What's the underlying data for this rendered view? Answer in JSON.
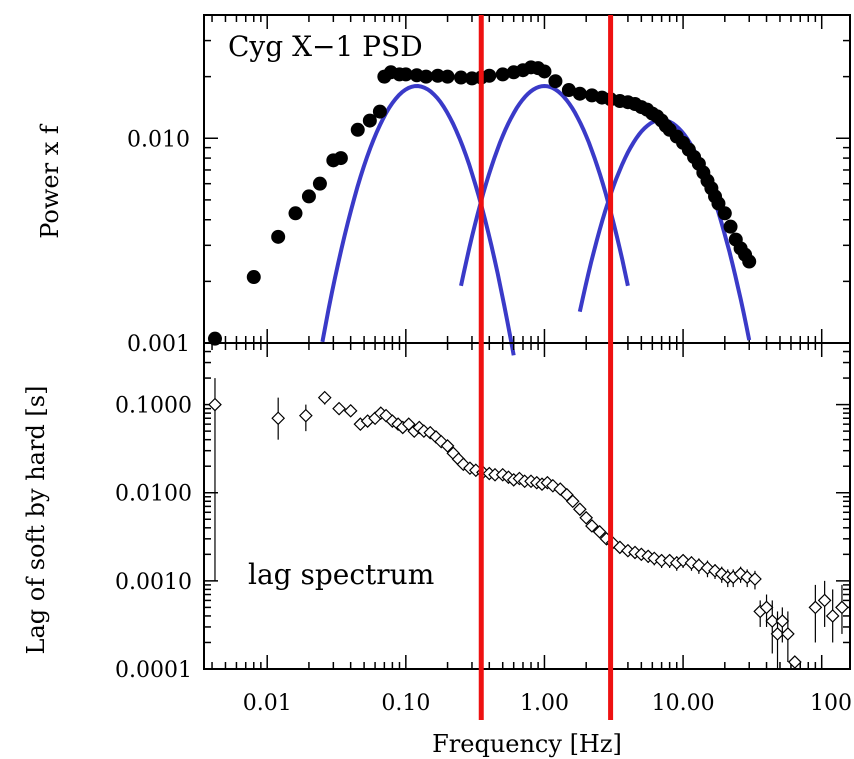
{
  "chart_data": [
    {
      "type": "scatter",
      "panel": "top",
      "title": "Cyg X−1 PSD",
      "ylabel": "Power x f",
      "xscale": "log",
      "yscale": "log",
      "xlim": [
        0.0035,
        160
      ],
      "ylim": [
        0.001,
        0.04
      ],
      "yticks": [
        {
          "value": 0.001,
          "label": "0.001"
        },
        {
          "value": 0.01,
          "label": "0.010"
        }
      ],
      "series": [
        {
          "marker": "filled-circle",
          "color": "#000000",
          "x": [
            0.0042,
            0.008,
            0.012,
            0.016,
            0.02,
            0.024,
            0.03,
            0.034,
            0.045,
            0.055,
            0.065,
            0.07,
            0.078,
            0.09,
            0.1,
            0.12,
            0.14,
            0.17,
            0.2,
            0.25,
            0.3,
            0.35,
            0.4,
            0.5,
            0.6,
            0.7,
            0.8,
            0.9,
            1.0,
            1.2,
            1.5,
            1.8,
            2.2,
            2.6,
            3.0,
            3.5,
            4.0,
            4.5,
            5.0,
            5.5,
            6.0,
            6.5,
            7.0,
            7.5,
            8.0,
            9.0,
            10.0,
            11.0,
            12.0,
            13.0,
            14.0,
            15.0,
            16.0,
            17.0,
            18.0,
            20.0,
            22.0,
            24.0,
            26.0,
            28.0,
            30.0
          ],
          "y": [
            0.00105,
            0.0021,
            0.0033,
            0.0043,
            0.0052,
            0.006,
            0.0078,
            0.008,
            0.011,
            0.0122,
            0.0135,
            0.02,
            0.021,
            0.0205,
            0.0205,
            0.0203,
            0.02,
            0.0202,
            0.02,
            0.0198,
            0.0196,
            0.0198,
            0.0202,
            0.0205,
            0.021,
            0.0215,
            0.0222,
            0.022,
            0.0212,
            0.019,
            0.0172,
            0.0165,
            0.0162,
            0.0158,
            0.0155,
            0.0152,
            0.015,
            0.0147,
            0.0142,
            0.0138,
            0.0132,
            0.0128,
            0.0122,
            0.0115,
            0.011,
            0.0102,
            0.0095,
            0.0088,
            0.0081,
            0.0075,
            0.0068,
            0.0062,
            0.0057,
            0.0052,
            0.0048,
            0.0043,
            0.0037,
            0.0032,
            0.0029,
            0.0027,
            0.0025
          ]
        }
      ],
      "components": {
        "color": "#3a3ac8",
        "curves": [
          {
            "peak_x": 0.12,
            "peak_y": 0.018,
            "x_range": [
              0.025,
              0.6
            ]
          },
          {
            "peak_x": 1.0,
            "peak_y": 0.018,
            "x_range": [
              0.25,
              4.0
            ]
          },
          {
            "peak_x": 7.0,
            "peak_y": 0.0123,
            "x_range": [
              1.8,
              30.0
            ]
          }
        ]
      }
    },
    {
      "type": "scatter",
      "panel": "bottom",
      "title": "lag spectrum",
      "xlabel": "Frequency [Hz]",
      "ylabel": "Lag of soft by hard [s]",
      "xscale": "log",
      "yscale": "log",
      "xlim": [
        0.0035,
        160
      ],
      "ylim": [
        0.0001,
        0.5
      ],
      "xticks": [
        {
          "value": 0.01,
          "label": "0.01"
        },
        {
          "value": 0.1,
          "label": "0.10"
        },
        {
          "value": 1,
          "label": "1.00"
        },
        {
          "value": 10,
          "label": "10.00"
        },
        {
          "value": 100,
          "label": "100"
        }
      ],
      "yticks": [
        {
          "value": 0.0001,
          "label": "0.0001"
        },
        {
          "value": 0.001,
          "label": "0.0010"
        },
        {
          "value": 0.01,
          "label": "0.0100"
        },
        {
          "value": 0.1,
          "label": "0.1000"
        }
      ],
      "series": [
        {
          "marker": "open-diamond",
          "color": "#000000",
          "x": [
            0.0042,
            0.012,
            0.019,
            0.026,
            0.033,
            0.04,
            0.047,
            0.053,
            0.06,
            0.066,
            0.072,
            0.08,
            0.088,
            0.095,
            0.105,
            0.115,
            0.125,
            0.135,
            0.15,
            0.165,
            0.18,
            0.2,
            0.22,
            0.24,
            0.26,
            0.29,
            0.32,
            0.36,
            0.4,
            0.44,
            0.5,
            0.55,
            0.6,
            0.66,
            0.72,
            0.8,
            0.88,
            0.96,
            1.05,
            1.15,
            1.3,
            1.45,
            1.6,
            1.8,
            2.0,
            2.2,
            2.5,
            2.8,
            3.1,
            3.5,
            4.0,
            4.5,
            5.0,
            5.6,
            6.2,
            7.0,
            8.0,
            9.0,
            10.0,
            11.5,
            13.0,
            15.0,
            17.0,
            19.0,
            21.0,
            23.0,
            26.0,
            29.0,
            33.0,
            36.0,
            40.0,
            44.0,
            48.0,
            52.0,
            57.0,
            64.0,
            90.0,
            105.0,
            120.0,
            140.0
          ],
          "y": [
            0.1,
            0.07,
            0.075,
            0.12,
            0.09,
            0.085,
            0.06,
            0.065,
            0.07,
            0.08,
            0.075,
            0.065,
            0.06,
            0.055,
            0.06,
            0.05,
            0.055,
            0.05,
            0.048,
            0.043,
            0.038,
            0.034,
            0.028,
            0.024,
            0.021,
            0.019,
            0.018,
            0.017,
            0.0165,
            0.016,
            0.016,
            0.015,
            0.014,
            0.0145,
            0.0135,
            0.0135,
            0.013,
            0.0125,
            0.013,
            0.012,
            0.011,
            0.0095,
            0.008,
            0.0065,
            0.0052,
            0.0042,
            0.0036,
            0.003,
            0.0027,
            0.0024,
            0.0022,
            0.0021,
            0.002,
            0.0019,
            0.0018,
            0.0017,
            0.0017,
            0.0016,
            0.0017,
            0.0016,
            0.0015,
            0.0014,
            0.0013,
            0.0012,
            0.0011,
            0.0011,
            0.0012,
            0.0011,
            0.00105,
            0.00045,
            0.0005,
            0.00035,
            0.00025,
            0.00035,
            0.00025,
            0.00012,
            0.0005,
            0.0006,
            0.0004,
            0.0005
          ],
          "err_low": [
            0.001,
            0.04,
            0.05,
            0.1,
            0.08,
            0.075,
            0.055,
            0.06,
            0.065,
            0.075,
            0.07,
            0.06,
            0.056,
            0.052,
            0.056,
            0.047,
            0.052,
            0.047,
            0.045,
            0.04,
            0.036,
            0.032,
            0.026,
            0.022,
            0.019,
            0.017,
            0.016,
            0.015,
            0.015,
            0.014,
            0.014,
            0.0135,
            0.0125,
            0.013,
            0.012,
            0.012,
            0.0116,
            0.0112,
            0.0116,
            0.0107,
            0.0098,
            0.0085,
            0.0071,
            0.0058,
            0.0046,
            0.0037,
            0.0032,
            0.0026,
            0.0024,
            0.0021,
            0.0019,
            0.0018,
            0.0017,
            0.0016,
            0.0015,
            0.0014,
            0.0014,
            0.0013,
            0.0014,
            0.0013,
            0.0012,
            0.0011,
            0.00105,
            0.00095,
            0.00085,
            0.00085,
            0.00095,
            0.00085,
            0.0008,
            0.0003,
            0.0003,
            0.00015,
            0.0001,
            0.0002,
            0.00012,
            0.0001,
            0.0002,
            0.0003,
            0.0002,
            0.00025
          ],
          "err_high": [
            0.2,
            0.12,
            0.1,
            0.14,
            0.1,
            0.095,
            0.065,
            0.07,
            0.075,
            0.085,
            0.08,
            0.07,
            0.064,
            0.058,
            0.064,
            0.053,
            0.058,
            0.053,
            0.051,
            0.046,
            0.04,
            0.036,
            0.03,
            0.026,
            0.023,
            0.021,
            0.02,
            0.019,
            0.018,
            0.018,
            0.018,
            0.0165,
            0.0155,
            0.016,
            0.015,
            0.015,
            0.0144,
            0.0138,
            0.0144,
            0.0133,
            0.0122,
            0.0105,
            0.0089,
            0.0072,
            0.0058,
            0.0047,
            0.004,
            0.0034,
            0.003,
            0.0027,
            0.0025,
            0.0024,
            0.0023,
            0.0022,
            0.0021,
            0.002,
            0.002,
            0.0019,
            0.002,
            0.0019,
            0.0018,
            0.0017,
            0.00155,
            0.00145,
            0.00135,
            0.00135,
            0.00145,
            0.00135,
            0.0013,
            0.0006,
            0.0007,
            0.0006,
            0.00045,
            0.0005,
            0.00045,
            0.00014,
            0.0009,
            0.001,
            0.0008,
            0.0009
          ]
        }
      ]
    }
  ],
  "markers": {
    "color": "#ee1111",
    "frequencies_hz": [
      0.35,
      3.0
    ]
  }
}
